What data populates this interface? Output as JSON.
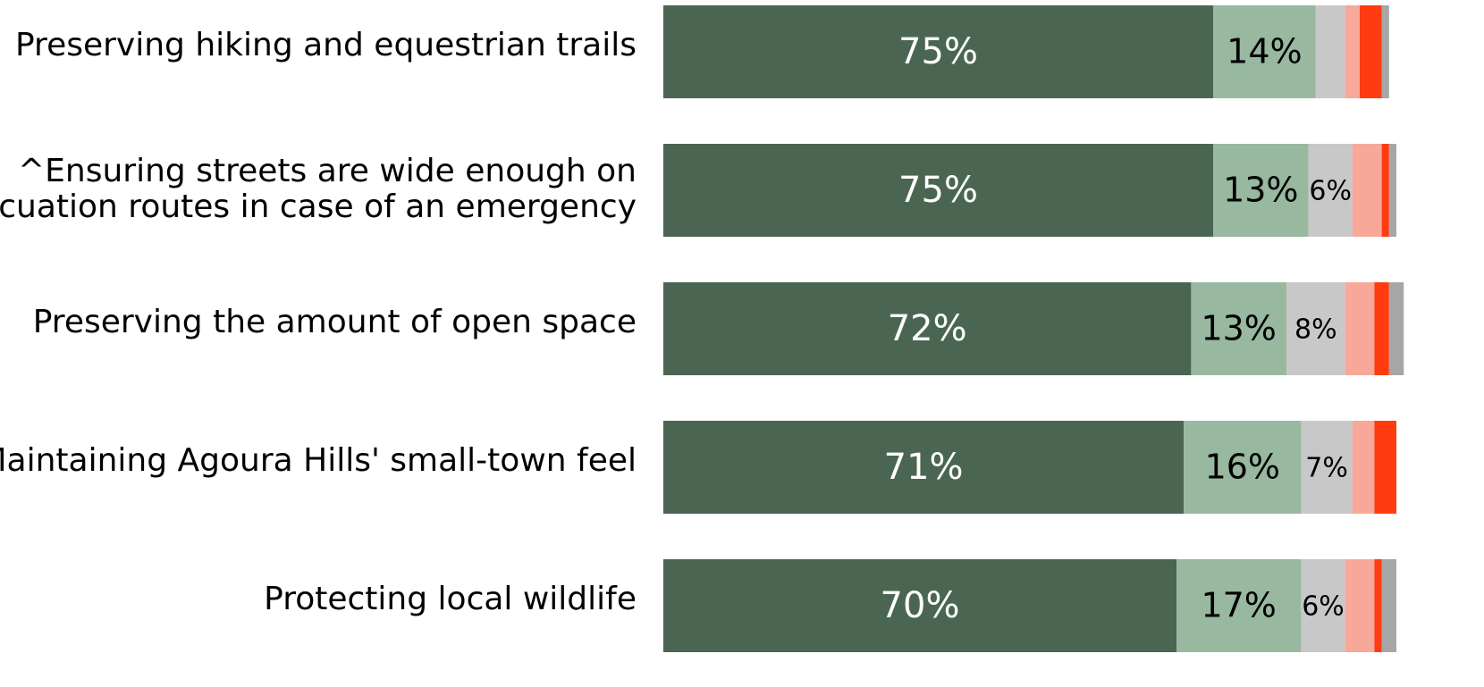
{
  "chart_data": {
    "type": "stacked_barh",
    "categories": [
      "Preserving hiking and equestrian trails",
      [
        "^Ensuring streets are wide enough on",
        "evacuation routes in case of an emergency"
      ],
      "Preserving the amount of open space",
      "Maintaining Agoura Hills' small-town feel",
      "Protecting local wildlife"
    ],
    "xlim": [
      0,
      100
    ],
    "series": [
      {
        "color": "#4a6652",
        "values": [
          75,
          75,
          72,
          71,
          70
        ],
        "value_labels": [
          "75%",
          "75%",
          "72%",
          "71%",
          "70%"
        ]
      },
      {
        "color": "#98b8a0",
        "values": [
          14,
          13,
          13,
          16,
          17
        ],
        "value_labels": [
          "14%",
          "13%",
          "13%",
          "16%",
          "17%"
        ]
      },
      {
        "color": "#c8c8c8",
        "values": [
          4,
          6,
          8,
          7,
          6
        ],
        "value_labels": [
          null,
          "6%",
          "8%",
          "7%",
          "6%"
        ]
      },
      {
        "color": "#f8a898",
        "values": [
          2,
          4,
          4,
          3,
          4
        ]
      },
      {
        "color": "#ff3b10",
        "values": [
          3,
          1,
          2,
          3,
          1
        ]
      },
      {
        "color": "#a6a6a6",
        "values": [
          1,
          1,
          2,
          0,
          2
        ]
      }
    ]
  }
}
